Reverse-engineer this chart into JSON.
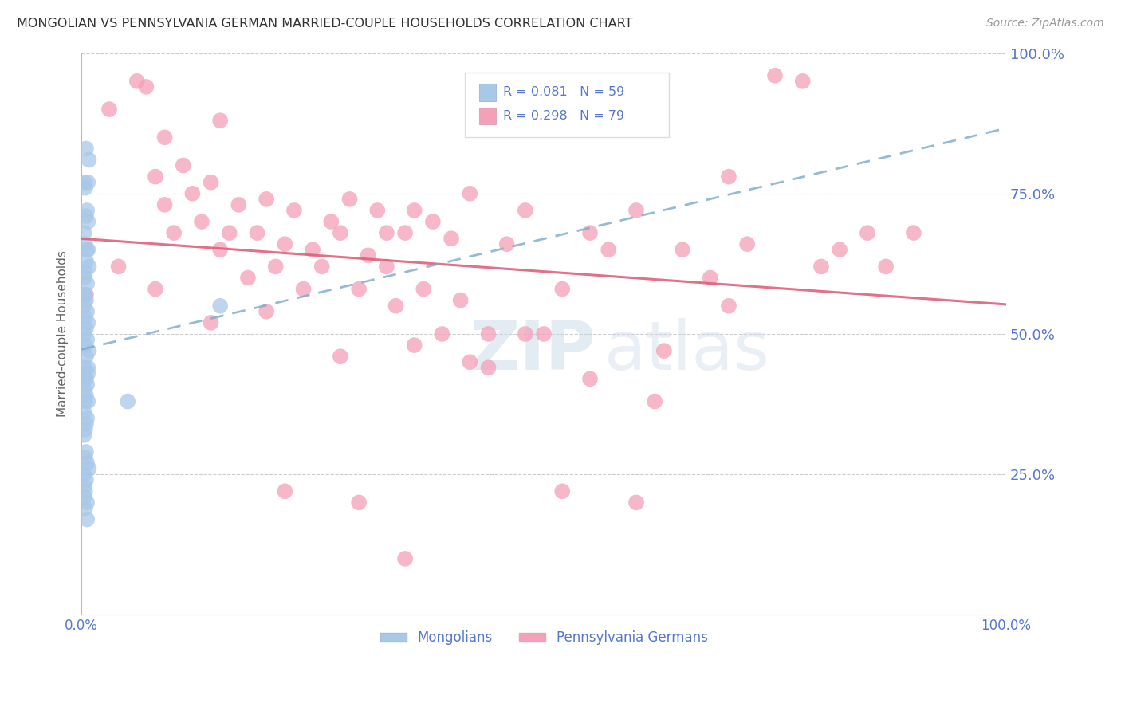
{
  "title": "MONGOLIAN VS PENNSYLVANIA GERMAN MARRIED-COUPLE HOUSEHOLDS CORRELATION CHART",
  "source": "Source: ZipAtlas.com",
  "ylabel": "Married-couple Households",
  "mongolian_R": 0.081,
  "mongolian_N": 59,
  "pennsylvania_R": 0.298,
  "pennsylvania_N": 79,
  "xlim": [
    0.0,
    1.0
  ],
  "ylim": [
    0.0,
    1.0
  ],
  "mongolian_color": "#a8c8e8",
  "pennsylvania_color": "#f4a0b8",
  "mongolian_line_color": "#7aaaca",
  "pennsylvania_line_color": "#e0607a",
  "background_color": "#ffffff",
  "grid_color": "#cccccc",
  "tick_label_color": "#5577cc",
  "title_color": "#333333",
  "mongolian_x": [
    0.005,
    0.008,
    0.003,
    0.004,
    0.006,
    0.005,
    0.007,
    0.003,
    0.004,
    0.006,
    0.005,
    0.008,
    0.004,
    0.003,
    0.006,
    0.007,
    0.004,
    0.005,
    0.003,
    0.006,
    0.004,
    0.007,
    0.005,
    0.003,
    0.006,
    0.004,
    0.008,
    0.005,
    0.003,
    0.007,
    0.004,
    0.006,
    0.003,
    0.005,
    0.007,
    0.004,
    0.003,
    0.006,
    0.005,
    0.004,
    0.003,
    0.007,
    0.005,
    0.004,
    0.006,
    0.008,
    0.003,
    0.15,
    0.005,
    0.004,
    0.003,
    0.006,
    0.005,
    0.007,
    0.004,
    0.003,
    0.006,
    0.05,
    0.003
  ],
  "mongolian_y": [
    0.83,
    0.81,
    0.77,
    0.76,
    0.72,
    0.71,
    0.7,
    0.68,
    0.66,
    0.65,
    0.63,
    0.62,
    0.61,
    0.6,
    0.59,
    0.77,
    0.57,
    0.56,
    0.55,
    0.54,
    0.53,
    0.52,
    0.51,
    0.5,
    0.49,
    0.48,
    0.47,
    0.46,
    0.44,
    0.43,
    0.42,
    0.41,
    0.4,
    0.39,
    0.38,
    0.38,
    0.36,
    0.35,
    0.34,
    0.33,
    0.32,
    0.65,
    0.29,
    0.28,
    0.27,
    0.26,
    0.25,
    0.55,
    0.24,
    0.22,
    0.21,
    0.2,
    0.42,
    0.44,
    0.19,
    0.57,
    0.17,
    0.38,
    0.23
  ],
  "pennsylvania_x": [
    0.005,
    0.04,
    0.06,
    0.07,
    0.08,
    0.09,
    0.09,
    0.1,
    0.11,
    0.12,
    0.13,
    0.14,
    0.15,
    0.15,
    0.16,
    0.17,
    0.18,
    0.19,
    0.2,
    0.21,
    0.22,
    0.23,
    0.24,
    0.25,
    0.26,
    0.27,
    0.28,
    0.29,
    0.3,
    0.31,
    0.32,
    0.33,
    0.33,
    0.34,
    0.35,
    0.36,
    0.37,
    0.38,
    0.39,
    0.4,
    0.41,
    0.42,
    0.44,
    0.46,
    0.48,
    0.5,
    0.52,
    0.55,
    0.57,
    0.6,
    0.62,
    0.65,
    0.68,
    0.7,
    0.72,
    0.75,
    0.78,
    0.8,
    0.82,
    0.85,
    0.87,
    0.9,
    0.03,
    0.08,
    0.14,
    0.2,
    0.28,
    0.36,
    0.44,
    0.52,
    0.6,
    0.3,
    0.35,
    0.22,
    0.42,
    0.48,
    0.55,
    0.63,
    0.7
  ],
  "pennsylvania_y": [
    0.57,
    0.62,
    0.95,
    0.94,
    0.78,
    0.73,
    0.85,
    0.68,
    0.8,
    0.75,
    0.7,
    0.77,
    0.88,
    0.65,
    0.68,
    0.73,
    0.6,
    0.68,
    0.74,
    0.62,
    0.66,
    0.72,
    0.58,
    0.65,
    0.62,
    0.7,
    0.68,
    0.74,
    0.58,
    0.64,
    0.72,
    0.68,
    0.62,
    0.55,
    0.68,
    0.72,
    0.58,
    0.7,
    0.5,
    0.67,
    0.56,
    0.45,
    0.44,
    0.66,
    0.72,
    0.5,
    0.58,
    0.42,
    0.65,
    0.72,
    0.38,
    0.65,
    0.6,
    0.78,
    0.66,
    0.96,
    0.95,
    0.62,
    0.65,
    0.68,
    0.62,
    0.68,
    0.9,
    0.58,
    0.52,
    0.54,
    0.46,
    0.48,
    0.5,
    0.22,
    0.2,
    0.2,
    0.1,
    0.22,
    0.75,
    0.5,
    0.68,
    0.47,
    0.55
  ]
}
